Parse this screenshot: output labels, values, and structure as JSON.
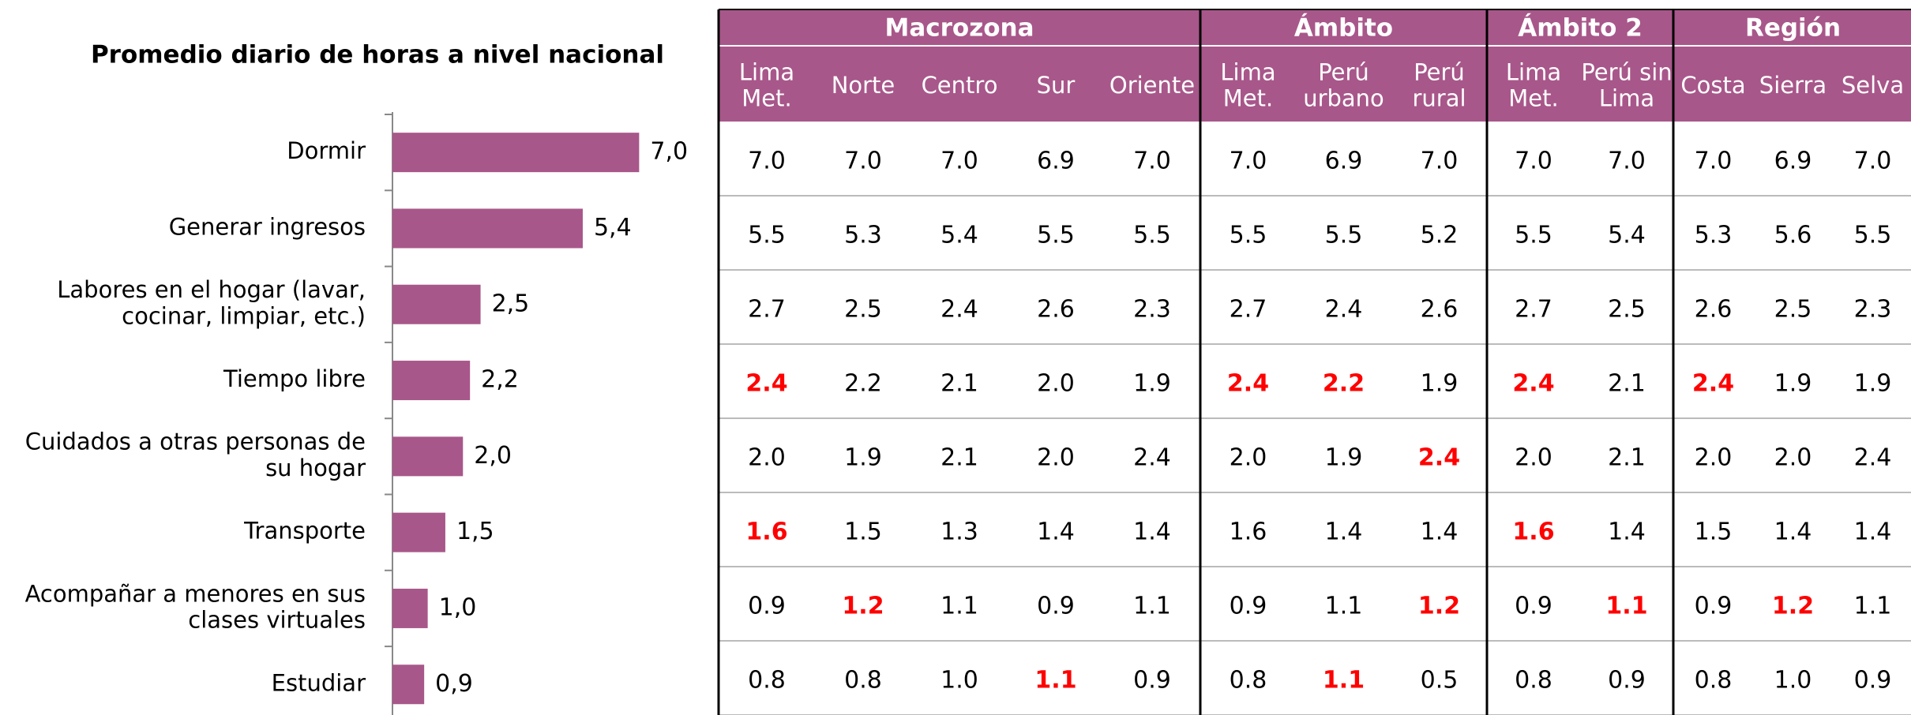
{
  "chart_data": {
    "type": "bar",
    "orientation": "horizontal",
    "title": "Promedio diario de horas a nivel nacional",
    "categories": [
      "Dormir",
      "Generar ingresos",
      "Labores en el hogar (lavar,\ncocinar, limpiar, etc.)",
      "Tiempo libre",
      "Cuidados a otras personas de\nsu hogar",
      "Transporte",
      "Acompañar a menores en sus\nclases virtuales",
      "Estudiar"
    ],
    "values": [
      7.0,
      5.4,
      2.5,
      2.2,
      2.0,
      1.5,
      1.0,
      0.9
    ],
    "value_labels": [
      "7,0",
      "5,4",
      "2,5",
      "2,2",
      "2,0",
      "1,5",
      "1,0",
      "0,9"
    ],
    "color": "#a8578a",
    "xlim": [
      0,
      8
    ]
  },
  "table": {
    "groups": [
      {
        "label": "Macrozona",
        "span": 5
      },
      {
        "label": "Ámbito",
        "span": 3
      },
      {
        "label": "Ámbito 2",
        "span": 2
      },
      {
        "label": "Región",
        "span": 3
      }
    ],
    "columns": [
      "Lima\nMet.",
      "Norte",
      "Centro",
      "Sur",
      "Oriente",
      "Lima\nMet.",
      "Perú\nurbano",
      "Perú\nrural",
      "Lima\nMet.",
      "Perú sin\nLima",
      "Costa",
      "Sierra",
      "Selva"
    ],
    "rows": [
      [
        "7.0",
        "7.0",
        "7.0",
        "6.9",
        "7.0",
        "7.0",
        "6.9",
        "7.0",
        "7.0",
        "7.0",
        "7.0",
        "6.9",
        "7.0"
      ],
      [
        "5.5",
        "5.3",
        "5.4",
        "5.5",
        "5.5",
        "5.5",
        "5.5",
        "5.2",
        "5.5",
        "5.4",
        "5.3",
        "5.6",
        "5.5"
      ],
      [
        "2.7",
        "2.5",
        "2.4",
        "2.6",
        "2.3",
        "2.7",
        "2.4",
        "2.6",
        "2.7",
        "2.5",
        "2.6",
        "2.5",
        "2.3"
      ],
      [
        "2.4",
        "2.2",
        "2.1",
        "2.0",
        "1.9",
        "2.4",
        "2.2",
        "1.9",
        "2.4",
        "2.1",
        "2.4",
        "1.9",
        "1.9"
      ],
      [
        "2.0",
        "1.9",
        "2.1",
        "2.0",
        "2.4",
        "2.0",
        "1.9",
        "2.4",
        "2.0",
        "2.1",
        "2.0",
        "2.0",
        "2.4"
      ],
      [
        "1.6",
        "1.5",
        "1.3",
        "1.4",
        "1.4",
        "1.6",
        "1.4",
        "1.4",
        "1.6",
        "1.4",
        "1.5",
        "1.4",
        "1.4"
      ],
      [
        "0.9",
        "1.2",
        "1.1",
        "0.9",
        "1.1",
        "0.9",
        "1.1",
        "1.2",
        "0.9",
        "1.1",
        "0.9",
        "1.2",
        "1.1"
      ],
      [
        "0.8",
        "0.8",
        "1.0",
        "1.1",
        "0.9",
        "0.8",
        "1.1",
        "0.5",
        "0.8",
        "0.9",
        "0.8",
        "1.0",
        "0.9"
      ]
    ],
    "highlighted": [
      [],
      [],
      [],
      [
        0,
        5,
        6,
        8,
        10
      ],
      [
        7
      ],
      [
        0,
        8
      ],
      [
        1,
        7,
        9,
        11
      ],
      [
        3,
        6
      ]
    ],
    "highlight_color": "#ff0000",
    "header_color": "#a8578a"
  }
}
